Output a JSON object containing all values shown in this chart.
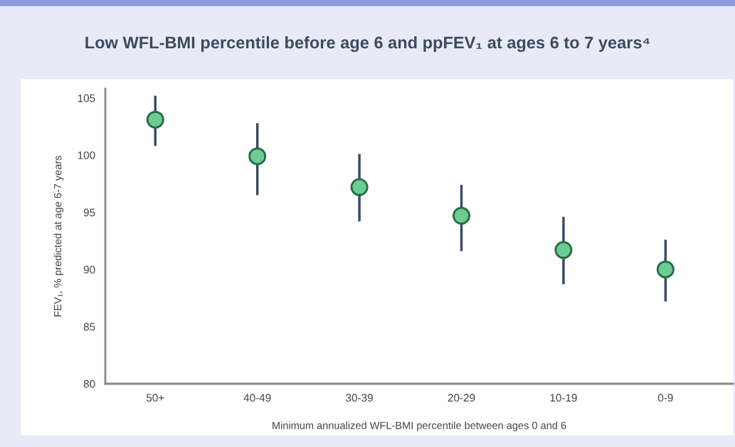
{
  "chart_data": {
    "type": "scatter",
    "title": "Low WFL-BMI percentile before age 6 and ppFEV₁ at ages 6 to 7 years⁴",
    "xlabel": "Minimum annualized WFL-BMI percentile between ages 0 and 6",
    "ylabel": "FEV₁, % predicted at age 6-7 years",
    "categories": [
      "50+",
      "40-49",
      "30-39",
      "20-29",
      "10-19",
      "0-9"
    ],
    "series": [
      {
        "color": "#6fcb95",
        "values": [
          103.1,
          99.9,
          97.2,
          94.7,
          91.7,
          90.0
        ],
        "errors": [
          [
            100.8,
            105.2
          ],
          [
            96.5,
            102.8
          ],
          [
            94.2,
            100.1
          ],
          [
            91.6,
            97.4
          ],
          [
            88.7,
            94.6
          ],
          [
            87.2,
            92.6
          ]
        ]
      }
    ],
    "ylim": [
      80,
      105.8
    ],
    "yticks": [
      80,
      85,
      90,
      95,
      100,
      105
    ],
    "marker": "circle",
    "grid": false,
    "legend": false
  }
}
